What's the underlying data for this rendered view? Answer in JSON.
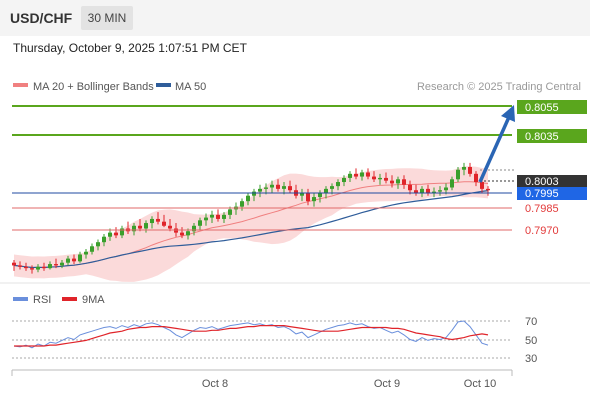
{
  "header": {
    "symbol": "USD/CHF",
    "timeframe": "30 MIN",
    "timestamp": "Thursday, October 9, 2025 1:07:51 PM CET"
  },
  "legend": {
    "ma20": "MA 20 + Bollinger Bands",
    "ma50": "MA 50",
    "credit": "Research © 2025 Trading Central",
    "rsi": "RSI",
    "rsi_ma": "9MA"
  },
  "colors": {
    "candle_up": "#3a9f2c",
    "candle_down": "#e0242a",
    "ma20": "#f08080",
    "bollinger_fill": "#fbdada",
    "ma50": "#2f5d9a",
    "resistance": "#5aa61d",
    "support": "#e26a6a",
    "current_price_box": "#333333",
    "pivot_box": "#1f66e5",
    "rsi_line": "#6a8fdc",
    "rsi_ma_line": "#e0242a",
    "arrow": "#2a65b4"
  },
  "levels": {
    "resistance": [
      "0.8055",
      "0.8035"
    ],
    "current_price": "0.8003",
    "pivot": "0.7995",
    "support": [
      "0.7985",
      "0.7970"
    ]
  },
  "rsi_axis": [
    "70",
    "50",
    "30"
  ],
  "x_axis": [
    "Oct 8",
    "Oct 9",
    "Oct 10"
  ],
  "chart_data": {
    "type": "candlestick",
    "title": "USD/CHF",
    "ylim": [
      0.7941,
      0.8069
    ],
    "x_labels": [
      "Oct 8",
      "Oct 9",
      "Oct 10"
    ],
    "candles": [
      [
        0.795,
        0.7952,
        0.7944,
        0.7948
      ],
      [
        0.7948,
        0.7951,
        0.7945,
        0.7947
      ],
      [
        0.7947,
        0.795,
        0.7944,
        0.7946
      ],
      [
        0.7946,
        0.7948,
        0.7942,
        0.7945
      ],
      [
        0.7945,
        0.7949,
        0.7943,
        0.7947
      ],
      [
        0.7947,
        0.795,
        0.7944,
        0.7946
      ],
      [
        0.7946,
        0.7951,
        0.7945,
        0.7949
      ],
      [
        0.7949,
        0.7953,
        0.7946,
        0.7948
      ],
      [
        0.7948,
        0.7952,
        0.7946,
        0.795
      ],
      [
        0.795,
        0.7955,
        0.7948,
        0.7953
      ],
      [
        0.7953,
        0.7956,
        0.7949,
        0.7951
      ],
      [
        0.7951,
        0.7958,
        0.795,
        0.7956
      ],
      [
        0.7956,
        0.796,
        0.7953,
        0.7958
      ],
      [
        0.7958,
        0.7964,
        0.7956,
        0.7962
      ],
      [
        0.7962,
        0.7967,
        0.7959,
        0.7965
      ],
      [
        0.7965,
        0.7971,
        0.7962,
        0.7969
      ],
      [
        0.7969,
        0.7975,
        0.7966,
        0.7972
      ],
      [
        0.7972,
        0.7976,
        0.7968,
        0.797
      ],
      [
        0.797,
        0.7977,
        0.7968,
        0.7975
      ],
      [
        0.7975,
        0.798,
        0.7971,
        0.7973
      ],
      [
        0.7973,
        0.7979,
        0.797,
        0.7977
      ],
      [
        0.7977,
        0.7982,
        0.7973,
        0.7975
      ],
      [
        0.7975,
        0.7981,
        0.7972,
        0.7979
      ],
      [
        0.7979,
        0.7984,
        0.7975,
        0.7982
      ],
      [
        0.7982,
        0.7987,
        0.7978,
        0.798
      ],
      [
        0.798,
        0.7985,
        0.7976,
        0.7977
      ],
      [
        0.7977,
        0.7982,
        0.7973,
        0.7975
      ],
      [
        0.7975,
        0.7979,
        0.7969,
        0.7972
      ],
      [
        0.7972,
        0.7976,
        0.7968,
        0.797
      ],
      [
        0.797,
        0.7975,
        0.7967,
        0.7973
      ],
      [
        0.7973,
        0.7979,
        0.797,
        0.7977
      ],
      [
        0.7977,
        0.7983,
        0.7974,
        0.7981
      ],
      [
        0.7981,
        0.7986,
        0.7977,
        0.7983
      ],
      [
        0.7983,
        0.7988,
        0.7979,
        0.7985
      ],
      [
        0.7985,
        0.7989,
        0.798,
        0.7982
      ],
      [
        0.7982,
        0.7987,
        0.7979,
        0.7985
      ],
      [
        0.7985,
        0.7991,
        0.7982,
        0.7989
      ],
      [
        0.7989,
        0.7994,
        0.7985,
        0.7991
      ],
      [
        0.7991,
        0.7997,
        0.7988,
        0.7995
      ],
      [
        0.7995,
        0.8001,
        0.7992,
        0.7999
      ],
      [
        0.7999,
        0.8004,
        0.7995,
        0.8002
      ],
      [
        0.8002,
        0.8007,
        0.7998,
        0.8004
      ],
      [
        0.8004,
        0.8008,
        0.8,
        0.8005
      ],
      [
        0.8005,
        0.801,
        0.8001,
        0.8007
      ],
      [
        0.8007,
        0.8011,
        0.8002,
        0.8004
      ],
      [
        0.8004,
        0.8009,
        0.8,
        0.8006
      ],
      [
        0.8006,
        0.801,
        0.8001,
        0.8003
      ],
      [
        0.8003,
        0.8007,
        0.7997,
        0.7999
      ],
      [
        0.7999,
        0.8004,
        0.7995,
        0.8001
      ],
      [
        0.8001,
        0.8004,
        0.7992,
        0.7995
      ],
      [
        0.7995,
        0.8001,
        0.7991,
        0.7998
      ],
      [
        0.7998,
        0.8003,
        0.7994,
        0.8001
      ],
      [
        0.8001,
        0.8006,
        0.7997,
        0.8004
      ],
      [
        0.8004,
        0.8008,
        0.8,
        0.8006
      ],
      [
        0.8006,
        0.8011,
        0.8003,
        0.8009
      ],
      [
        0.8009,
        0.8014,
        0.8006,
        0.8012
      ],
      [
        0.8012,
        0.8017,
        0.8009,
        0.8015
      ],
      [
        0.8015,
        0.8019,
        0.8011,
        0.8013
      ],
      [
        0.8013,
        0.8018,
        0.801,
        0.8016
      ],
      [
        0.8016,
        0.8019,
        0.8011,
        0.8013
      ],
      [
        0.8013,
        0.8017,
        0.8009,
        0.8011
      ],
      [
        0.8011,
        0.8015,
        0.8007,
        0.8012
      ],
      [
        0.8012,
        0.8016,
        0.8008,
        0.801
      ],
      [
        0.801,
        0.8014,
        0.8005,
        0.8008
      ],
      [
        0.8008,
        0.8013,
        0.8004,
        0.8011
      ],
      [
        0.8011,
        0.8014,
        0.8004,
        0.8007
      ],
      [
        0.8007,
        0.801,
        0.8,
        0.8003
      ],
      [
        0.8003,
        0.8007,
        0.7999,
        0.8001
      ],
      [
        0.8001,
        0.8006,
        0.7998,
        0.8004
      ],
      [
        0.8004,
        0.8007,
        0.7999,
        0.8001
      ],
      [
        0.8001,
        0.8005,
        0.7998,
        0.8002
      ],
      [
        0.8002,
        0.8006,
        0.7999,
        0.8003
      ],
      [
        0.8003,
        0.8008,
        0.8,
        0.8005
      ],
      [
        0.8005,
        0.8013,
        0.8003,
        0.8011
      ],
      [
        0.8011,
        0.802,
        0.8009,
        0.8018
      ],
      [
        0.8018,
        0.8023,
        0.8014,
        0.802
      ],
      [
        0.802,
        0.8023,
        0.8013,
        0.8015
      ],
      [
        0.8015,
        0.8017,
        0.8006,
        0.8009
      ],
      [
        0.8009,
        0.8012,
        0.8001,
        0.8004
      ],
      [
        0.8004,
        0.8006,
        0.7999,
        0.8003
      ]
    ],
    "rsi": [
      43,
      42,
      44,
      41,
      45,
      43,
      47,
      46,
      49,
      52,
      50,
      55,
      57,
      59,
      61,
      63,
      64,
      62,
      65,
      63,
      66,
      64,
      67,
      68,
      66,
      63,
      60,
      55,
      52,
      56,
      60,
      63,
      62,
      64,
      61,
      63,
      65,
      66,
      67,
      68,
      66,
      67,
      65,
      66,
      63,
      64,
      61,
      56,
      58,
      52,
      55,
      58,
      61,
      63,
      65,
      66,
      68,
      66,
      67,
      64,
      62,
      63,
      60,
      57,
      59,
      55,
      50,
      48,
      52,
      49,
      51,
      50,
      52,
      60,
      69,
      70,
      64,
      55,
      46,
      44
    ],
    "rsi_ma": [
      43,
      43,
      43,
      43,
      43,
      43,
      44,
      44,
      45,
      46,
      47,
      48,
      49,
      51,
      53,
      55,
      57,
      58,
      59,
      61,
      62,
      63,
      63,
      64,
      64,
      64,
      63,
      62,
      61,
      60,
      59,
      59,
      59,
      60,
      60,
      61,
      62,
      62,
      63,
      64,
      64,
      65,
      65,
      65,
      65,
      65,
      64,
      63,
      62,
      61,
      60,
      59,
      59,
      59,
      59,
      60,
      61,
      62,
      63,
      63,
      63,
      63,
      63,
      62,
      62,
      61,
      59,
      57,
      56,
      55,
      54,
      53,
      51,
      50,
      51,
      52,
      54,
      55,
      56,
      55
    ]
  }
}
